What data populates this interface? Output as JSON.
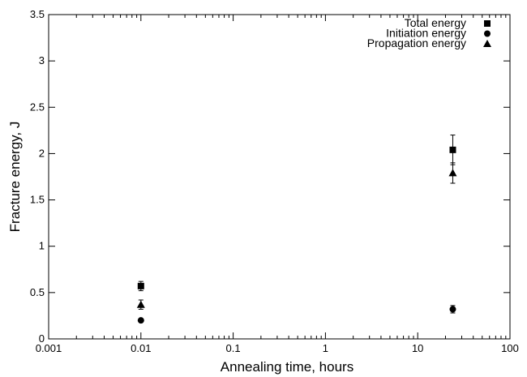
{
  "chart_data": {
    "type": "scatter",
    "title": "",
    "xlabel": "Annealing time, hours",
    "ylabel": "Fracture energy, J",
    "xscale": "log",
    "xlim": [
      0.001,
      100
    ],
    "ylim": [
      0,
      3.5
    ],
    "x_ticks": [
      {
        "value": 0.001,
        "label": "0.001"
      },
      {
        "value": 0.01,
        "label": "0.01"
      },
      {
        "value": 0.1,
        "label": "0.1"
      },
      {
        "value": 1,
        "label": "1"
      },
      {
        "value": 10,
        "label": "10"
      },
      {
        "value": 100,
        "label": "100"
      }
    ],
    "y_ticks": [
      {
        "value": 0,
        "label": "0"
      },
      {
        "value": 0.5,
        "label": "0.5"
      },
      {
        "value": 1,
        "label": "1"
      },
      {
        "value": 1.5,
        "label": "1.5"
      },
      {
        "value": 2,
        "label": "2"
      },
      {
        "value": 2.5,
        "label": "2.5"
      },
      {
        "value": 3,
        "label": "3"
      },
      {
        "value": 3.5,
        "label": "3.5"
      }
    ],
    "grid": false,
    "legend_position": "top-right",
    "series": [
      {
        "name": "Total energy",
        "marker": "square",
        "points": [
          {
            "x": 0.01,
            "y": 0.57,
            "err": 0.05
          },
          {
            "x": 24,
            "y": 2.04,
            "err": 0.16
          }
        ]
      },
      {
        "name": "Initiation energy",
        "marker": "circle",
        "points": [
          {
            "x": 0.01,
            "y": 0.2,
            "err": 0
          },
          {
            "x": 24,
            "y": 0.32,
            "err": 0.04
          }
        ]
      },
      {
        "name": "Propagation energy",
        "marker": "triangle",
        "points": [
          {
            "x": 0.01,
            "y": 0.37,
            "err": 0.05
          },
          {
            "x": 24,
            "y": 1.79,
            "err": 0.11
          }
        ]
      }
    ]
  }
}
